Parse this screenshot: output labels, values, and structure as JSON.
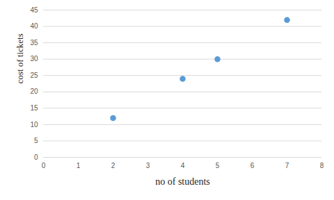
{
  "chart_data": {
    "type": "scatter",
    "x_label": "no of students",
    "y_label": "cost of tickets",
    "x": [
      2,
      4,
      5,
      7
    ],
    "values": [
      12,
      24,
      30,
      42
    ],
    "color": "#5b9bd5",
    "marker": "circle",
    "xlim": [
      0,
      8
    ],
    "xticks": [
      0,
      1,
      2,
      3,
      4,
      5,
      6,
      7,
      8
    ],
    "ylim": [
      0,
      45
    ],
    "yticks": [
      0,
      5,
      10,
      15,
      20,
      25,
      30,
      35,
      40,
      45
    ],
    "grid": true
  }
}
